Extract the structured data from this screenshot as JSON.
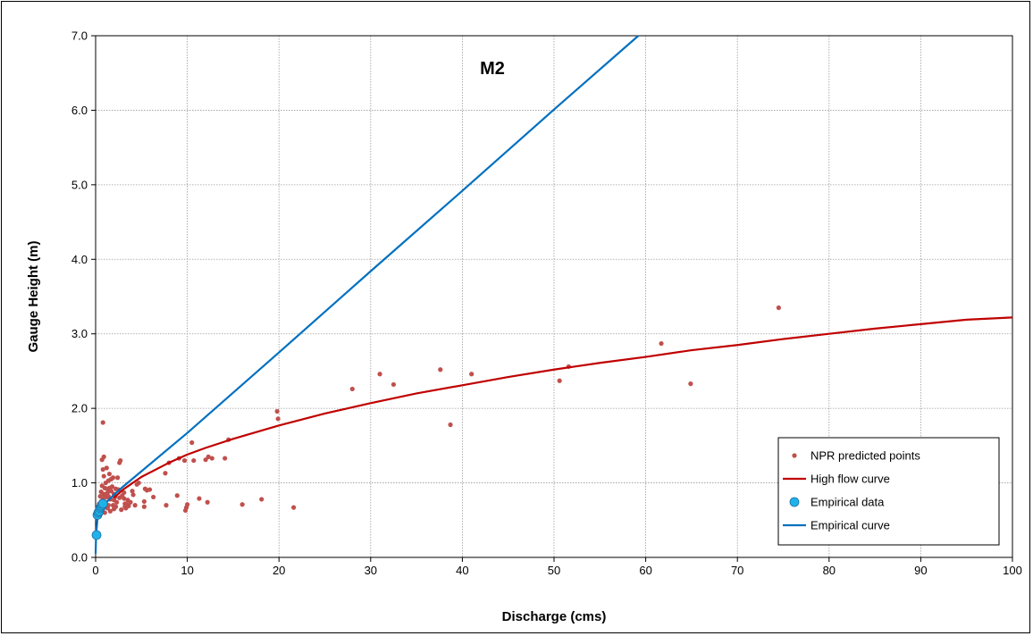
{
  "chart_data": {
    "type": "scatter",
    "title": "M2",
    "xlabel": "Discharge (cms)",
    "ylabel": "Gauge Height (m)",
    "xlim": [
      0,
      100
    ],
    "ylim": [
      0,
      7
    ],
    "x_ticks": [
      "0",
      "10",
      "20",
      "30",
      "40",
      "50",
      "60",
      "70",
      "80",
      "90",
      "100"
    ],
    "y_ticks": [
      "0.0",
      "1.0",
      "2.0",
      "3.0",
      "4.0",
      "5.0",
      "6.0",
      "7.0"
    ],
    "grid": true,
    "legend_position": "bottom-right",
    "series": [
      {
        "name": "NPR predicted points",
        "kind": "scatter",
        "color": "#C0504D",
        "points": [
          [
            74.5,
            3.35
          ],
          [
            61.7,
            2.87
          ],
          [
            64.9,
            2.33
          ],
          [
            51.6,
            2.56
          ],
          [
            50.6,
            2.37
          ],
          [
            41.0,
            2.46
          ],
          [
            37.6,
            2.52
          ],
          [
            38.7,
            1.78
          ],
          [
            32.5,
            2.32
          ],
          [
            31.0,
            2.46
          ],
          [
            28.0,
            2.26
          ],
          [
            19.8,
            1.96
          ],
          [
            19.9,
            1.86
          ],
          [
            21.6,
            0.67
          ],
          [
            18.1,
            0.78
          ],
          [
            16.0,
            0.71
          ],
          [
            14.5,
            1.58
          ],
          [
            14.1,
            1.33
          ],
          [
            12.7,
            1.33
          ],
          [
            12.3,
            1.35
          ],
          [
            12.0,
            1.31
          ],
          [
            12.2,
            0.74
          ],
          [
            11.3,
            0.79
          ],
          [
            10.5,
            1.54
          ],
          [
            10.7,
            1.3
          ],
          [
            9.7,
            1.3
          ],
          [
            9.9,
            0.67
          ],
          [
            10.0,
            0.71
          ],
          [
            9.8,
            0.63
          ],
          [
            8.9,
            0.83
          ],
          [
            9.1,
            1.33
          ],
          [
            8.0,
            1.27
          ],
          [
            7.6,
            1.13
          ],
          [
            7.7,
            0.7
          ],
          [
            6.3,
            0.81
          ],
          [
            5.9,
            0.91
          ],
          [
            5.6,
            0.9
          ],
          [
            5.4,
            0.92
          ],
          [
            5.3,
            0.75
          ],
          [
            5.3,
            0.68
          ],
          [
            4.7,
            1.0
          ],
          [
            4.5,
            0.98
          ],
          [
            4.1,
            0.84
          ],
          [
            4.0,
            0.89
          ],
          [
            3.8,
            0.74
          ],
          [
            3.6,
            0.69
          ],
          [
            3.4,
            0.71
          ],
          [
            3.3,
            0.66
          ],
          [
            3.2,
            0.68
          ],
          [
            3.2,
            0.72
          ],
          [
            3.1,
            0.79
          ],
          [
            3.1,
            0.87
          ],
          [
            2.9,
            0.83
          ],
          [
            2.8,
            0.64
          ],
          [
            2.7,
            1.3
          ],
          [
            2.6,
            1.27
          ],
          [
            2.5,
            0.91
          ],
          [
            2.4,
            1.07
          ],
          [
            2.3,
            0.74
          ],
          [
            2.2,
            0.68
          ],
          [
            2.1,
            0.81
          ],
          [
            2.0,
            0.85
          ],
          [
            2.0,
            0.77
          ],
          [
            2.0,
            0.65
          ],
          [
            1.9,
            1.07
          ],
          [
            1.8,
            0.95
          ],
          [
            1.7,
            0.89
          ],
          [
            1.6,
            0.78
          ],
          [
            1.6,
            0.62
          ],
          [
            1.5,
            0.93
          ],
          [
            1.5,
            1.12
          ],
          [
            1.4,
            1.03
          ],
          [
            1.4,
            0.7
          ],
          [
            1.3,
            0.87
          ],
          [
            1.3,
            0.66
          ],
          [
            1.2,
            1.2
          ],
          [
            1.2,
            0.81
          ],
          [
            1.1,
            1.0
          ],
          [
            1.1,
            0.74
          ],
          [
            1.0,
            0.93
          ],
          [
            1.0,
            0.6
          ],
          [
            0.9,
            1.35
          ],
          [
            0.9,
            1.09
          ],
          [
            0.9,
            0.85
          ],
          [
            0.8,
            1.81
          ],
          [
            0.8,
            1.18
          ],
          [
            0.8,
            0.78
          ],
          [
            0.7,
            1.31
          ],
          [
            0.7,
            0.96
          ],
          [
            0.7,
            0.68
          ],
          [
            0.6,
            0.88
          ],
          [
            0.6,
            0.75
          ],
          [
            0.5,
            0.82
          ],
          [
            0.5,
            0.64
          ],
          [
            0.4,
            0.72
          ],
          [
            1.3,
            0.92
          ],
          [
            1.7,
            1.05
          ],
          [
            2.2,
            0.92
          ],
          [
            2.6,
            0.8
          ],
          [
            1.9,
            0.7
          ],
          [
            1.0,
            0.82
          ],
          [
            0.9,
            0.7
          ],
          [
            1.4,
            0.82
          ],
          [
            3.5,
            0.77
          ],
          [
            4.3,
            0.7
          ]
        ]
      },
      {
        "name": "High flow curve",
        "kind": "line",
        "color": "#C00000",
        "points": [
          [
            2,
            0.8
          ],
          [
            3,
            0.91
          ],
          [
            5,
            1.08
          ],
          [
            8,
            1.27
          ],
          [
            10,
            1.38
          ],
          [
            12,
            1.47
          ],
          [
            15,
            1.59
          ],
          [
            20,
            1.77
          ],
          [
            25,
            1.93
          ],
          [
            30,
            2.07
          ],
          [
            35,
            2.2
          ],
          [
            40,
            2.31
          ],
          [
            45,
            2.42
          ],
          [
            50,
            2.52
          ],
          [
            55,
            2.61
          ],
          [
            60,
            2.69
          ],
          [
            65,
            2.78
          ],
          [
            70,
            2.85
          ],
          [
            75,
            2.93
          ],
          [
            80,
            3.0
          ],
          [
            85,
            3.07
          ],
          [
            90,
            3.13
          ],
          [
            95,
            3.19
          ],
          [
            100,
            3.22
          ]
        ]
      },
      {
        "name": "Empirical data",
        "kind": "scatter",
        "color": "#1FB2E8",
        "points": [
          [
            0.1,
            0.3
          ],
          [
            0.2,
            0.57
          ],
          [
            0.3,
            0.6
          ],
          [
            0.4,
            0.62
          ],
          [
            0.5,
            0.66
          ],
          [
            0.6,
            0.68
          ],
          [
            0.7,
            0.7
          ],
          [
            0.8,
            0.72
          ]
        ]
      },
      {
        "name": "Empirical curve",
        "kind": "line",
        "color": "#0070C0",
        "points": [
          [
            0.0,
            0.05
          ],
          [
            0.05,
            0.3
          ],
          [
            0.2,
            0.52
          ],
          [
            0.5,
            0.62
          ],
          [
            1.0,
            0.72
          ],
          [
            2.0,
            0.84
          ],
          [
            3.0,
            0.95
          ],
          [
            10,
            1.67
          ],
          [
            20,
            2.75
          ],
          [
            30,
            3.84
          ],
          [
            40,
            4.92
          ],
          [
            50,
            6.01
          ],
          [
            59.2,
            7.0
          ]
        ]
      }
    ]
  }
}
